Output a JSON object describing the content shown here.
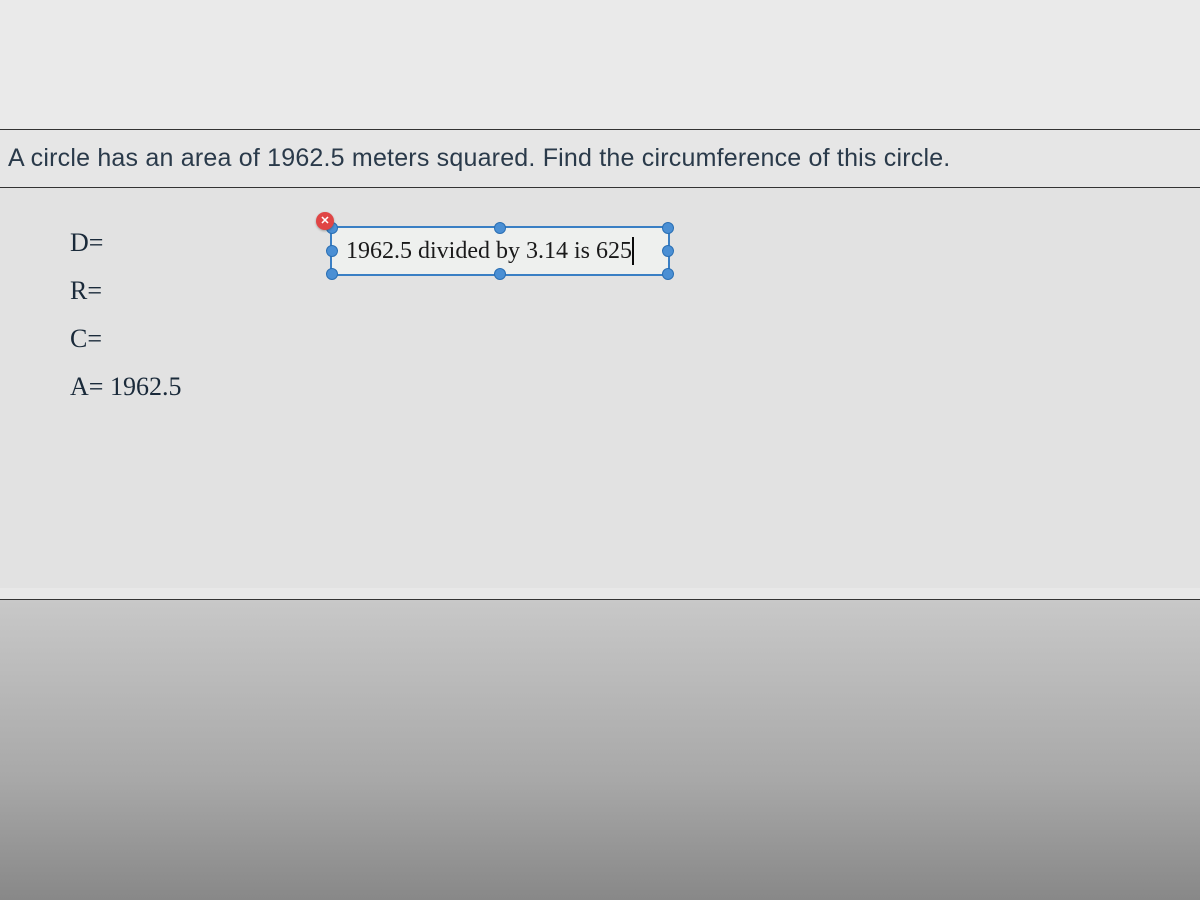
{
  "question": {
    "text": "A circle has an area of 1962.5 meters squared.  Find the circumference of this circle."
  },
  "variables": {
    "d_label": "D=",
    "r_label": "R=",
    "c_label": "C=",
    "a_label": "A= 1962.5"
  },
  "textbox": {
    "content": "1962.5 divided by 3.14 is 625",
    "border_color": "#3a7fc4",
    "handle_color": "#4a8fd4",
    "close_color": "#e04545"
  },
  "colors": {
    "panel_bg": "#e6e6e6",
    "border": "#333333",
    "text_primary": "#2a3a4a"
  }
}
